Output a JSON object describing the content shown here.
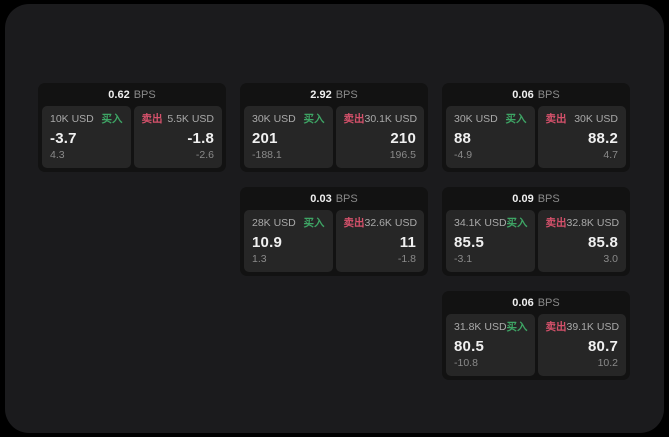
{
  "colors": {
    "page_outer": "#000000",
    "window_bg": "#1b1b1d",
    "card_bg": "#121212",
    "panel_bg": "#262626",
    "buy_green": "#3ea565",
    "sell_red": "#d5516b",
    "value_white": "#f0f0f0",
    "label_gray": "#a9a9a9",
    "sub_gray": "#8a8a8a"
  },
  "labels": {
    "buy": "买入",
    "sell": "卖出",
    "bps_unit": "BPS"
  },
  "cards": [
    {
      "bps": "0.62",
      "buy": {
        "amount": "10K USD",
        "price": "-3.7",
        "sub": "4.3"
      },
      "sell": {
        "amount": "5.5K USD",
        "price": "-1.8",
        "sub": "-2.6"
      }
    },
    {
      "bps": "2.92",
      "buy": {
        "amount": "30K USD",
        "price": "201",
        "sub": "-188.1"
      },
      "sell": {
        "amount": "30.1K USD",
        "price": "210",
        "sub": "196.5"
      }
    },
    {
      "bps": "0.06",
      "buy": {
        "amount": "30K USD",
        "price": "88",
        "sub": "-4.9"
      },
      "sell": {
        "amount": "30K USD",
        "price": "88.2",
        "sub": "4.7"
      }
    },
    {
      "bps": "0.03",
      "buy": {
        "amount": "28K USD",
        "price": "10.9",
        "sub": "1.3"
      },
      "sell": {
        "amount": "32.6K USD",
        "price": "11",
        "sub": "-1.8"
      }
    },
    {
      "bps": "0.09",
      "buy": {
        "amount": "34.1K USD",
        "price": "85.5",
        "sub": "-3.1"
      },
      "sell": {
        "amount": "32.8K USD",
        "price": "85.8",
        "sub": "3.0"
      }
    },
    {
      "bps": "0.06",
      "buy": {
        "amount": "31.8K USD",
        "price": "80.5",
        "sub": "-10.8"
      },
      "sell": {
        "amount": "39.1K USD",
        "price": "80.7",
        "sub": "10.2"
      }
    }
  ]
}
